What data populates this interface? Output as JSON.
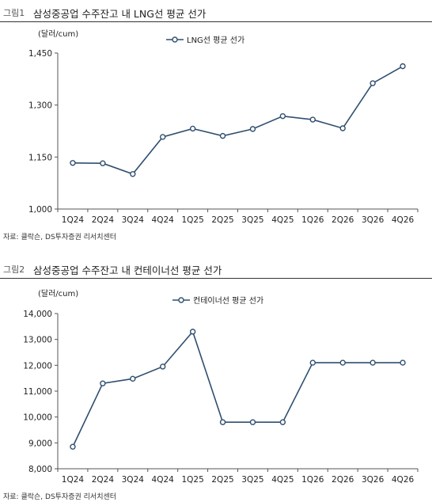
{
  "figures": [
    {
      "fig_num": "그림1",
      "title": "삼성중공업 수주잔고 내 LNG선 평균 선가",
      "source": "자료: 클락슨, DS투자증권 리서치센터"
    },
    {
      "fig_num": "그림2",
      "title": "삼성중공업 수주잔고 내 컨테이너선 평균 선가",
      "source": "자료: 클락슨, DS투자증권 리서치센터"
    }
  ],
  "chart_data": [
    {
      "type": "line",
      "unit": "(달러/cum)",
      "categories": [
        "1Q24",
        "2Q24",
        "3Q24",
        "4Q24",
        "1Q25",
        "2Q25",
        "3Q25",
        "4Q25",
        "1Q26",
        "2Q26",
        "3Q26",
        "4Q26"
      ],
      "series": [
        {
          "name": "LNG선 평균 선가",
          "values": [
            1133,
            1132,
            1101,
            1208,
            1232,
            1211,
            1231,
            1268,
            1258,
            1233,
            1363,
            1412
          ]
        }
      ],
      "ylim": [
        1000,
        1450
      ],
      "yticks": [
        "1,000",
        "1,150",
        "1,300",
        "1,450"
      ],
      "ytick_values": [
        1000,
        1150,
        1300,
        1450
      ],
      "legend": "top-center",
      "grid": false,
      "line_color": "#2f4f6f",
      "marker_fill": "#ffffff"
    },
    {
      "type": "line",
      "unit": "(달러/cum)",
      "categories": [
        "1Q24",
        "2Q24",
        "3Q24",
        "4Q24",
        "1Q25",
        "2Q25",
        "3Q25",
        "4Q25",
        "1Q26",
        "2Q26",
        "3Q26",
        "4Q26"
      ],
      "series": [
        {
          "name": "컨테이너선 평균 선가",
          "values": [
            8850,
            11300,
            11480,
            11950,
            13300,
            9800,
            9800,
            9800,
            12100,
            12100,
            12100,
            12100
          ]
        }
      ],
      "ylim": [
        8000,
        14000
      ],
      "yticks": [
        "8,000",
        "9,000",
        "10,000",
        "11,000",
        "12,000",
        "13,000",
        "14,000"
      ],
      "ytick_values": [
        8000,
        9000,
        10000,
        11000,
        12000,
        13000,
        14000
      ],
      "legend": "top-center",
      "grid": false,
      "line_color": "#2f4f6f",
      "marker_fill": "#ffffff"
    }
  ]
}
